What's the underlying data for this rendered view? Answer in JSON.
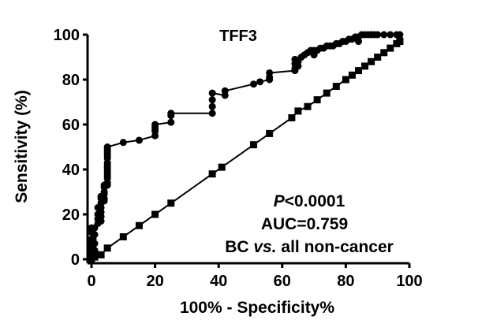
{
  "chart_data": {
    "type": "line",
    "title": "TFF3",
    "xlabel": "100% - Specificity%",
    "ylabel": "Sensitivity (%)",
    "xlim": [
      0,
      100
    ],
    "ylim": [
      0,
      100
    ],
    "x_ticks": [
      "0",
      "20",
      "40",
      "60",
      "80",
      "100"
    ],
    "y_ticks": [
      "0",
      "20",
      "40",
      "60",
      "80",
      "100"
    ],
    "grid": false,
    "legend": "none",
    "annotations": {
      "p_letter": "P",
      "p_rest": "<0.0001",
      "auc": "AUC=0.759",
      "comparison_a": "BC",
      "comparison_vs": "vs.",
      "comparison_b": "all non-cancer"
    },
    "series": [
      {
        "marker": "circle",
        "color": "#000000",
        "x": [
          0,
          0,
          0,
          0,
          0,
          0,
          0,
          0,
          0.5,
          0.5,
          0.5,
          1,
          1,
          1,
          1,
          1,
          2,
          2,
          2,
          2,
          3,
          3,
          3,
          3,
          3,
          3,
          3,
          4,
          4,
          4,
          4,
          4,
          4,
          5,
          5,
          5,
          5,
          5,
          5,
          5,
          5,
          5,
          5,
          5,
          5,
          5,
          5,
          5,
          5,
          10,
          15,
          20,
          20,
          20,
          20,
          20,
          25,
          25,
          25,
          38,
          38,
          38,
          38,
          42,
          42,
          51,
          53,
          56,
          56,
          56,
          64,
          64,
          64,
          64,
          65,
          65,
          66,
          67,
          68,
          69,
          70,
          70,
          71,
          72,
          73,
          74,
          75,
          76,
          77,
          77,
          78,
          79,
          80,
          81,
          82,
          83,
          84,
          84,
          85,
          86,
          87,
          88,
          88,
          89,
          90,
          92,
          94,
          96,
          97,
          97
        ],
        "y": [
          0,
          1,
          3,
          5,
          7,
          9,
          12,
          14,
          2,
          4,
          9,
          2,
          4,
          7,
          11,
          14,
          16,
          18,
          20,
          23,
          17,
          19,
          21,
          23,
          25,
          27,
          28,
          26,
          27,
          29,
          30,
          32,
          33,
          33,
          34,
          36,
          37,
          38,
          39,
          40,
          41,
          42,
          43,
          45,
          46,
          47,
          48,
          49,
          50,
          52,
          53,
          55,
          57,
          58,
          59,
          60,
          61,
          64,
          65,
          65,
          68,
          71,
          74,
          73,
          75,
          78,
          79,
          80,
          81,
          83,
          84,
          85,
          87,
          89,
          86,
          88,
          90,
          91,
          92,
          93,
          91,
          93,
          93,
          94,
          94,
          95,
          95,
          95,
          96,
          96,
          96,
          97,
          97,
          98,
          98,
          99,
          97,
          99,
          100,
          100,
          100,
          100,
          100,
          100,
          100,
          100,
          100,
          100,
          98,
          100
        ]
      },
      {
        "marker": "square",
        "color": "#000000",
        "x": [
          0,
          0,
          0,
          0,
          1,
          3,
          5,
          10,
          15,
          20,
          25,
          38,
          41,
          51,
          56,
          63,
          65,
          68,
          71,
          74,
          77,
          80,
          82,
          84,
          86,
          88,
          90,
          92,
          94,
          96,
          97
        ],
        "y": [
          0,
          2,
          5,
          8,
          1,
          2,
          5,
          10,
          15,
          20,
          25,
          38,
          41,
          51,
          56,
          63,
          66,
          68,
          71,
          74,
          77,
          80,
          82,
          84,
          86,
          88,
          90,
          92,
          94,
          96,
          97
        ]
      }
    ]
  }
}
